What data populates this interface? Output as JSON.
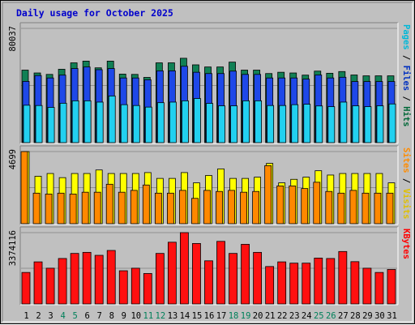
{
  "chart_data": {
    "type": "bar",
    "title": "Daily usage for October 2025",
    "categories": [
      "1",
      "2",
      "3",
      "4",
      "5",
      "6",
      "7",
      "8",
      "9",
      "10",
      "11",
      "12",
      "13",
      "14",
      "15",
      "16",
      "17",
      "18",
      "19",
      "20",
      "21",
      "22",
      "23",
      "24",
      "25",
      "26",
      "27",
      "28",
      "29",
      "30",
      "31"
    ],
    "weekend_days": [
      "4",
      "5",
      "11",
      "12",
      "18",
      "19",
      "25",
      "26"
    ],
    "panels": [
      {
        "id": "pages-files-hits",
        "max_label": "80037",
        "ylim": [
          0,
          80037
        ],
        "legend": [
          {
            "label": "Pages",
            "color": "#00b8d8"
          },
          {
            "label": "Files",
            "color": "#0030c0"
          },
          {
            "label": "Hits",
            "color": "#006838"
          }
        ],
        "series": [
          {
            "name": "Hits",
            "color": "#118055",
            "values": [
              50800,
              48800,
              47800,
              51400,
              55900,
              57100,
              52400,
              57100,
              48000,
              47800,
              45700,
              55900,
              55900,
              59100,
              54500,
              53000,
              53000,
              56400,
              50800,
              50800,
              48400,
              49300,
              48800,
              47300,
              50100,
              48600,
              49800,
              47400,
              46800,
              46800,
              46800
            ]
          },
          {
            "name": "Files",
            "color": "#1e48e8",
            "values": [
              42900,
              47000,
              45300,
              47300,
              51900,
              53000,
              51100,
              51900,
              45300,
              45300,
              44000,
              50300,
              50300,
              53500,
              49300,
              48400,
              48400,
              50100,
              47800,
              47800,
              45300,
              45300,
              45300,
              44500,
              47400,
              45300,
              45800,
              42800,
              42800,
              42800,
              42800
            ]
          },
          {
            "name": "Pages",
            "color": "#22d0f0",
            "values": [
              26200,
              26000,
              24700,
              27600,
              29300,
              29300,
              28400,
              32700,
              26600,
              26000,
              24900,
              28000,
              28400,
              29300,
              30900,
              27500,
              25800,
              25800,
              29300,
              29300,
              26000,
              26000,
              26600,
              26900,
              25700,
              25200,
              28400,
              25800,
              25200,
              25800,
              27100
            ]
          }
        ]
      },
      {
        "id": "sites-visits",
        "max_label": "4699",
        "ylim": [
          0,
          4699
        ],
        "legend": [
          {
            "label": "Sites",
            "color": "#ff8c00"
          },
          {
            "label": "Visits",
            "color": "#e0c000"
          }
        ],
        "series": [
          {
            "name": "Visits",
            "color": "#ffff00",
            "values": [
              4699,
              3090,
              3270,
              3000,
              3270,
              3270,
              3500,
              3270,
              3270,
              3270,
              3330,
              2950,
              2950,
              3330,
              2660,
              3140,
              3570,
              2950,
              2950,
              3030,
              3930,
              2660,
              2890,
              3030,
              3450,
              3170,
              3270,
              3270,
              3270,
              3270,
              2660
            ]
          },
          {
            "name": "Sites",
            "color": "#ff8800",
            "values": [
              4699,
              1990,
              1930,
              1990,
              1930,
              2050,
              2050,
              2570,
              2050,
              2170,
              2520,
              1990,
              1990,
              2170,
              1650,
              2170,
              2100,
              2170,
              2050,
              2100,
              3780,
              2460,
              2460,
              2290,
              2700,
              2100,
              1990,
              2170,
              1990,
              1990,
              1990
            ]
          }
        ]
      },
      {
        "id": "kbytes",
        "max_label": "3374116",
        "ylim": [
          0,
          3374116
        ],
        "legend": [
          {
            "label": "KBytes",
            "color": "#ff0000"
          }
        ],
        "series": [
          {
            "name": "KBytes",
            "color": "#ff1010",
            "values": [
              1490000,
              1990000,
              1690000,
              2150000,
              2390000,
              2440000,
              2300000,
              2530000,
              1570000,
              1690000,
              1440000,
              2390000,
              2920000,
              3374116,
              2860000,
              2040000,
              2960000,
              2390000,
              2820000,
              2440000,
              1770000,
              1990000,
              1930000,
              1930000,
              2170000,
              2150000,
              2480000,
              2000000,
              1690000,
              1490000,
              1630000
            ]
          }
        ]
      }
    ]
  }
}
